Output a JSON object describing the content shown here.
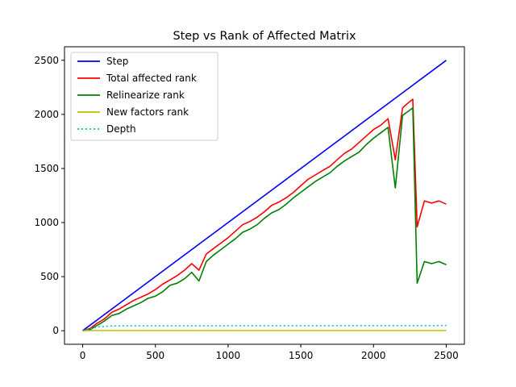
{
  "chart_data": {
    "type": "line",
    "title": "Step vs Rank of Affected Matrix",
    "xlabel": "",
    "ylabel": "",
    "xlim": [
      -125,
      2625
    ],
    "ylim": [
      -125,
      2625
    ],
    "xticks": [
      0,
      500,
      1000,
      1500,
      2000,
      2500
    ],
    "yticks": [
      0,
      500,
      1000,
      1500,
      2000,
      2500
    ],
    "xtick_labels": [
      "0",
      "500",
      "1000",
      "1500",
      "2000",
      "2500"
    ],
    "ytick_labels": [
      "0",
      "500",
      "1000",
      "1500",
      "2000",
      "2500"
    ],
    "grid": false,
    "legend_position": "upper-left",
    "series": [
      {
        "name": "Step",
        "color": "#0000ff",
        "style": "solid",
        "x": [
          0,
          2500
        ],
        "y": [
          0,
          2500
        ]
      },
      {
        "name": "Total affected rank",
        "color": "#ff0000",
        "style": "solid",
        "x": [
          0,
          50,
          100,
          150,
          200,
          250,
          300,
          350,
          400,
          450,
          500,
          550,
          600,
          650,
          700,
          750,
          800,
          850,
          900,
          950,
          1000,
          1050,
          1100,
          1150,
          1200,
          1250,
          1300,
          1350,
          1400,
          1450,
          1500,
          1550,
          1600,
          1650,
          1700,
          1750,
          1800,
          1850,
          1900,
          1950,
          2000,
          2050,
          2100,
          2150,
          2200,
          2250,
          2270,
          2300,
          2350,
          2400,
          2450,
          2500
        ],
        "y": [
          0,
          20,
          70,
          110,
          170,
          200,
          240,
          280,
          310,
          340,
          380,
          430,
          470,
          510,
          560,
          620,
          560,
          710,
          760,
          810,
          860,
          920,
          980,
          1010,
          1050,
          1100,
          1160,
          1190,
          1230,
          1280,
          1340,
          1400,
          1440,
          1480,
          1520,
          1580,
          1640,
          1680,
          1740,
          1800,
          1860,
          1900,
          1960,
          1580,
          2060,
          2120,
          2140,
          960,
          1200,
          1180,
          1200,
          1170
        ]
      },
      {
        "name": "Relinearize rank",
        "color": "#008000",
        "style": "solid",
        "x": [
          0,
          50,
          100,
          150,
          200,
          250,
          300,
          350,
          400,
          450,
          500,
          550,
          600,
          650,
          700,
          750,
          800,
          850,
          900,
          950,
          1000,
          1050,
          1100,
          1150,
          1200,
          1250,
          1300,
          1350,
          1400,
          1450,
          1500,
          1550,
          1600,
          1650,
          1700,
          1750,
          1800,
          1850,
          1900,
          1950,
          2000,
          2050,
          2100,
          2150,
          2200,
          2250,
          2270,
          2300,
          2350,
          2400,
          2450,
          2500
        ],
        "y": [
          0,
          10,
          50,
          90,
          140,
          160,
          200,
          230,
          260,
          300,
          320,
          360,
          420,
          440,
          480,
          540,
          460,
          640,
          700,
          750,
          800,
          850,
          910,
          940,
          980,
          1040,
          1090,
          1120,
          1170,
          1230,
          1280,
          1330,
          1380,
          1420,
          1460,
          1520,
          1570,
          1610,
          1650,
          1720,
          1780,
          1830,
          1880,
          1320,
          1990,
          2040,
          2060,
          440,
          640,
          620,
          640,
          610
        ]
      },
      {
        "name": "New factors rank",
        "color": "#bfbf00",
        "style": "solid",
        "x": [
          0,
          2500
        ],
        "y": [
          2,
          2
        ]
      },
      {
        "name": "Depth",
        "color": "#00bfbf",
        "style": "dotted",
        "x": [
          0,
          100,
          200,
          2500
        ],
        "y": [
          0,
          35,
          45,
          48
        ]
      }
    ]
  }
}
